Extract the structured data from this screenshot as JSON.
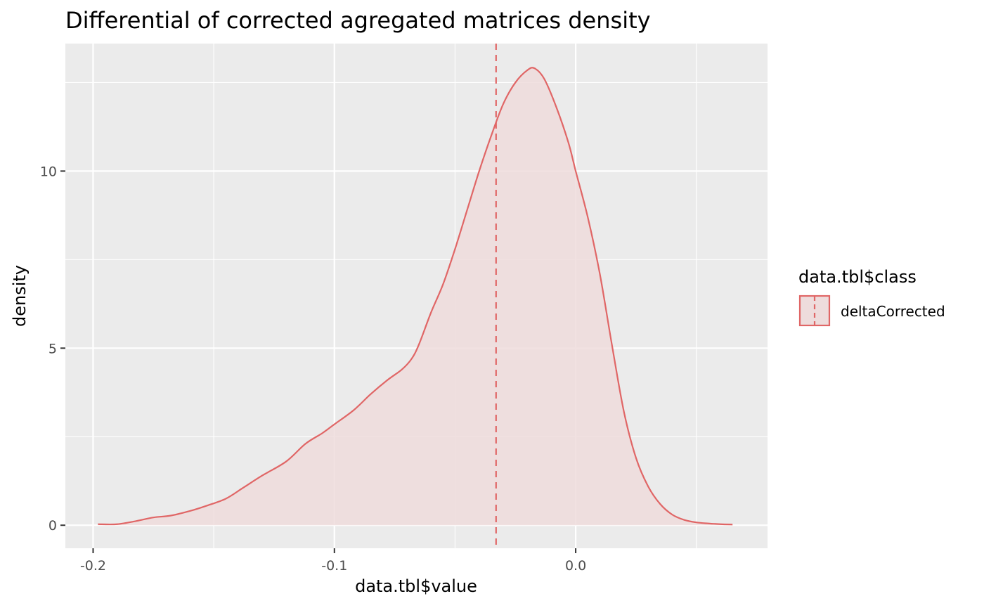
{
  "chart_data": {
    "type": "area",
    "title": "Differential of corrected agregated matrices density",
    "xlabel": "data.tbl$value",
    "ylabel": "density",
    "xlim": [
      -0.2115,
      0.0795
    ],
    "ylim": [
      -0.65,
      13.6
    ],
    "x_ticks": [
      -0.2,
      -0.1,
      0.0
    ],
    "x_tick_labels": [
      "-0.2",
      "-0.1",
      "0.0"
    ],
    "y_ticks": [
      0,
      5,
      10
    ],
    "y_tick_labels": [
      "0",
      "5",
      "10"
    ],
    "grid": true,
    "legend": {
      "title": "data.tbl$class",
      "position": "right",
      "entries": [
        "deltaCorrected"
      ]
    },
    "vline": {
      "x": -0.033,
      "style": "dashed"
    },
    "colors": {
      "line": "#E06666",
      "fill": "#EEDCDC",
      "panel": "#EBEBEB",
      "grid": "#FFFFFF"
    },
    "series": [
      {
        "name": "deltaCorrected",
        "x": [
          -0.198,
          -0.19,
          -0.182,
          -0.175,
          -0.168,
          -0.16,
          -0.153,
          -0.145,
          -0.138,
          -0.13,
          -0.12,
          -0.112,
          -0.105,
          -0.1,
          -0.092,
          -0.085,
          -0.078,
          -0.072,
          -0.068,
          -0.065,
          -0.06,
          -0.055,
          -0.05,
          -0.045,
          -0.04,
          -0.035,
          -0.03,
          -0.025,
          -0.02,
          -0.017,
          -0.013,
          -0.008,
          -0.003,
          0.0,
          0.005,
          0.01,
          0.015,
          0.02,
          0.025,
          0.03,
          0.035,
          0.04,
          0.045,
          0.05,
          0.055,
          0.06,
          0.065
        ],
        "y": [
          0.03,
          0.03,
          0.12,
          0.22,
          0.27,
          0.4,
          0.55,
          0.75,
          1.05,
          1.4,
          1.8,
          2.3,
          2.6,
          2.85,
          3.25,
          3.7,
          4.1,
          4.4,
          4.7,
          5.1,
          6.0,
          6.8,
          7.8,
          8.9,
          10.0,
          11.0,
          11.9,
          12.5,
          12.85,
          12.9,
          12.6,
          11.8,
          10.8,
          10.0,
          8.7,
          7.1,
          5.1,
          3.2,
          1.9,
          1.1,
          0.6,
          0.3,
          0.15,
          0.08,
          0.05,
          0.03,
          0.02
        ]
      }
    ]
  }
}
